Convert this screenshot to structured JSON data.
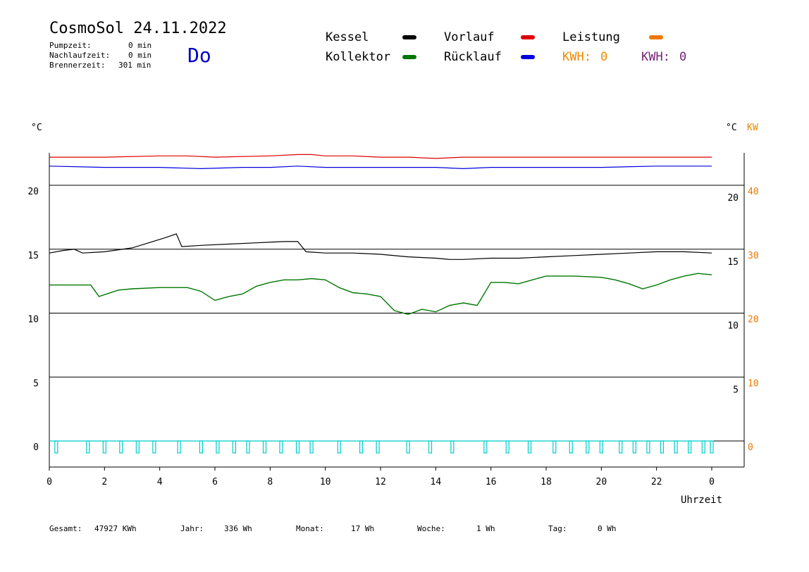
{
  "header": {
    "title": "CosmoSol 24.11.2022",
    "day": "Do",
    "pumpzeit_label": "Pumpzeit:",
    "pumpzeit_value": "0 min",
    "nachlaufzeit_label": "Nachlaufzeit:",
    "nachlaufzeit_value": "0 min",
    "brennerzeit_label": "Brennerzeit:",
    "brennerzeit_value": "301 min"
  },
  "legend": {
    "kessel": "Kessel",
    "kollektor": "Kollektor",
    "vorlauf": "Vorlauf",
    "ruecklauf": "Rücklauf",
    "leistung": "Leistung",
    "kwh1_label": "KWH:",
    "kwh1_value": "0",
    "kwh2_label": "KWH:",
    "kwh2_value": "0"
  },
  "colors": {
    "kessel": "#000000",
    "kollektor": "#007700",
    "vorlauf": "#dd0000",
    "ruecklauf": "#0000dd",
    "leistung": "#ee7700",
    "kwh2": "#772277",
    "pump": "#00cccc",
    "title_day": "#0000cc"
  },
  "footer": {
    "gesamt_label": "Gesamt:",
    "gesamt_value": "47927 KWh",
    "jahr_label": "Jahr:",
    "jahr_value": "336 Wh",
    "monat_label": "Monat:",
    "monat_value": "17 Wh",
    "woche_label": "Woche:",
    "woche_value": "1 Wh",
    "tag_label": "Tag:",
    "tag_value": "0 Wh"
  },
  "chart_data": {
    "type": "line",
    "xlabel": "Uhrzeit",
    "ylabel_left": "°C",
    "ylabel_right_temp": "°C",
    "ylabel_right_power": "KW",
    "x_ticks": [
      "0",
      "2",
      "4",
      "6",
      "8",
      "10",
      "12",
      "14",
      "16",
      "18",
      "20",
      "22",
      "0"
    ],
    "xlim": [
      0,
      24
    ],
    "y_left_ticks": [
      "20",
      "15",
      "10",
      "5",
      "0"
    ],
    "y_left_values": [
      20,
      15,
      10,
      5,
      0
    ],
    "y_right_temp_ticks": [
      "20",
      "15",
      "10",
      "5"
    ],
    "y_right_power_ticks": [
      "40",
      "30",
      "20",
      "10",
      "0"
    ],
    "ylim": [
      -2,
      23
    ],
    "grid": "horizontal",
    "series": [
      {
        "name": "Kessel",
        "x": [
          0,
          0.5,
          0.9,
          1.2,
          2,
          3,
          3.6,
          4.2,
          4.6,
          4.8,
          5.5,
          6.5,
          7.5,
          8.5,
          9,
          9.3,
          10,
          11,
          12,
          13,
          14,
          14.5,
          15,
          16,
          17,
          18,
          19,
          20,
          21,
          22,
          23,
          24
        ],
        "values": [
          14.7,
          14.9,
          15.0,
          14.7,
          14.8,
          15.1,
          15.5,
          15.9,
          16.2,
          15.2,
          15.3,
          15.4,
          15.5,
          15.6,
          15.6,
          14.8,
          14.7,
          14.7,
          14.6,
          14.4,
          14.3,
          14.2,
          14.2,
          14.3,
          14.3,
          14.4,
          14.5,
          14.6,
          14.7,
          14.8,
          14.8,
          14.7
        ]
      },
      {
        "name": "Kollektor",
        "x": [
          0,
          1.5,
          1.8,
          2.5,
          3,
          4,
          5,
          5.5,
          6,
          6.5,
          7,
          7.5,
          8,
          8.5,
          9,
          9.5,
          10,
          10.5,
          11,
          11.5,
          12,
          12.5,
          13,
          13.5,
          14,
          14.5,
          15,
          15.5,
          16,
          16.5,
          17,
          17.5,
          18,
          19,
          20,
          20.5,
          21,
          21.5,
          22,
          22.5,
          23,
          23.5,
          24
        ],
        "values": [
          12.2,
          12.2,
          11.3,
          11.8,
          11.9,
          12.0,
          12.0,
          11.7,
          11.0,
          11.3,
          11.5,
          12.1,
          12.4,
          12.6,
          12.6,
          12.7,
          12.6,
          12.0,
          11.6,
          11.5,
          11.3,
          10.2,
          9.9,
          10.3,
          10.1,
          10.6,
          10.8,
          10.6,
          12.4,
          12.4,
          12.3,
          12.6,
          12.9,
          12.9,
          12.8,
          12.6,
          12.3,
          11.9,
          12.2,
          12.6,
          12.9,
          13.1,
          13.0
        ]
      },
      {
        "name": "Vorlauf",
        "x": [
          0,
          2,
          4,
          5,
          6,
          8,
          9,
          9.5,
          10,
          11,
          12,
          13,
          14,
          15,
          16,
          18,
          20,
          22,
          24
        ],
        "values": [
          22.2,
          22.2,
          22.3,
          22.3,
          22.2,
          22.3,
          22.4,
          22.4,
          22.3,
          22.3,
          22.2,
          22.2,
          22.1,
          22.2,
          22.2,
          22.2,
          22.2,
          22.2,
          22.2
        ]
      },
      {
        "name": "Rücklauf",
        "x": [
          0,
          2,
          4,
          5.5,
          7,
          8,
          9,
          10,
          11,
          12,
          13,
          14,
          15,
          16,
          18,
          20,
          22,
          24
        ],
        "values": [
          21.5,
          21.4,
          21.4,
          21.3,
          21.4,
          21.4,
          21.5,
          21.4,
          21.4,
          21.4,
          21.4,
          21.4,
          21.3,
          21.4,
          21.4,
          21.4,
          21.5,
          21.5
        ]
      },
      {
        "name": "Leistung",
        "x": [
          0,
          24
        ],
        "values": [
          0,
          0
        ]
      }
    ],
    "pump_pulses_hours": [
      0.25,
      1.4,
      2.0,
      2.6,
      3.2,
      3.8,
      4.7,
      5.5,
      6.1,
      6.7,
      7.2,
      7.8,
      8.4,
      9.0,
      9.5,
      10.5,
      11.3,
      11.9,
      13.0,
      13.8,
      14.6,
      15.8,
      16.6,
      17.4,
      18.3,
      18.9,
      19.5,
      20.0,
      20.7,
      21.2,
      21.7,
      22.2,
      22.7,
      23.2,
      23.7,
      24.0
    ]
  }
}
